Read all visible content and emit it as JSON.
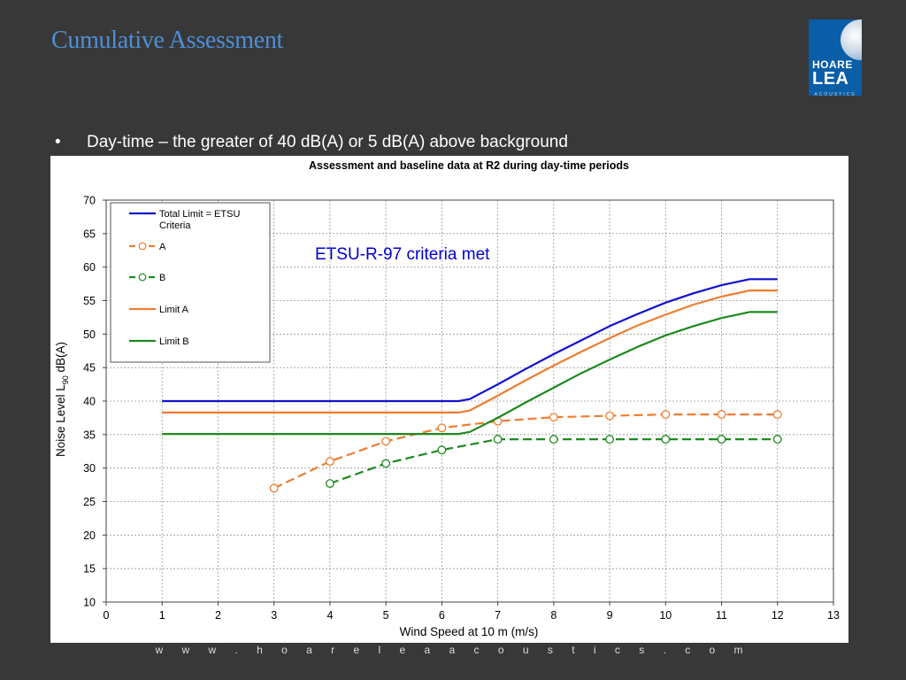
{
  "slide": {
    "title": "Cumulative Assessment",
    "bullet_marker": "•",
    "bullet_text": "Day-time – the greater of 40 dB(A) or 5 dB(A) above background",
    "footer": "w w w . h o a r e l e a a c o u s t i c s . c o m"
  },
  "logo": {
    "line1": "HOARE",
    "line2": "LEA",
    "subtitle": "ACOUSTICS"
  },
  "chart_data": {
    "type": "line",
    "title": "Assessment and baseline data at R2 during day-time periods",
    "xlabel": "Wind Speed at 10 m (m/s)",
    "ylabel_parts": [
      "Noise Level L",
      "90",
      " dB(A)"
    ],
    "xlim": [
      0,
      13
    ],
    "ylim": [
      10,
      70
    ],
    "xticks": [
      0,
      1,
      2,
      3,
      4,
      5,
      6,
      7,
      8,
      9,
      10,
      11,
      12,
      13
    ],
    "yticks": [
      10,
      15,
      20,
      25,
      30,
      35,
      40,
      45,
      50,
      55,
      60,
      65,
      70
    ],
    "grid": true,
    "legend_position": "top-left",
    "annotation": "ETSU-R-97 criteria met",
    "annotation_color": "#0000cc",
    "series": [
      {
        "name": "Total Limit = ETSU Criteria",
        "legend_lines": [
          "Total Limit = ETSU",
          "Criteria"
        ],
        "color": "#1111cc",
        "style": "solid",
        "markers": false,
        "x": [
          1,
          2,
          3,
          4,
          5,
          6,
          6.3,
          6.5,
          7,
          7.5,
          8,
          8.5,
          9,
          9.5,
          10,
          10.5,
          11,
          11.5,
          12
        ],
        "y": [
          40,
          40,
          40,
          40,
          40,
          40,
          40,
          40.3,
          42.5,
          44.8,
          47.0,
          49.1,
          51.2,
          53.0,
          54.7,
          56.1,
          57.3,
          58.2,
          58.2
        ]
      },
      {
        "name": "A",
        "legend_lines": [
          "A"
        ],
        "color": "#ed7d31",
        "style": "dashed",
        "markers": true,
        "x": [
          3,
          4,
          5,
          6,
          7,
          8,
          9,
          10,
          11,
          12
        ],
        "y": [
          27.0,
          31.0,
          34.0,
          36.0,
          37.0,
          37.6,
          37.8,
          38.0,
          38.0,
          38.0
        ]
      },
      {
        "name": "B",
        "legend_lines": [
          "B"
        ],
        "color": "#1e8a1e",
        "style": "dashed",
        "markers": true,
        "x": [
          4,
          5,
          6,
          7,
          8,
          9,
          10,
          11,
          12
        ],
        "y": [
          27.7,
          30.7,
          32.7,
          34.3,
          34.3,
          34.3,
          34.3,
          34.3,
          34.3
        ]
      },
      {
        "name": "Limit A",
        "legend_lines": [
          "Limit A"
        ],
        "color": "#ed7d31",
        "style": "solid",
        "markers": false,
        "x": [
          1,
          2,
          3,
          4,
          5,
          6,
          6.3,
          6.5,
          7,
          7.5,
          8,
          8.5,
          9,
          9.5,
          10,
          10.5,
          11,
          11.5,
          12
        ],
        "y": [
          38.3,
          38.3,
          38.3,
          38.3,
          38.3,
          38.3,
          38.3,
          38.6,
          40.8,
          43.1,
          45.3,
          47.4,
          49.4,
          51.3,
          52.9,
          54.4,
          55.6,
          56.5,
          56.5
        ]
      },
      {
        "name": "Limit B",
        "legend_lines": [
          "Limit B"
        ],
        "color": "#1e8a1e",
        "style": "solid",
        "markers": false,
        "x": [
          1,
          2,
          3,
          4,
          5,
          6,
          6.3,
          6.5,
          7,
          7.5,
          8,
          8.5,
          9,
          9.5,
          10,
          10.5,
          11,
          11.5,
          12
        ],
        "y": [
          35.1,
          35.1,
          35.1,
          35.1,
          35.1,
          35.1,
          35.1,
          35.4,
          37.5,
          39.8,
          42.0,
          44.2,
          46.2,
          48.1,
          49.8,
          51.2,
          52.4,
          53.3,
          53.3
        ]
      }
    ]
  }
}
